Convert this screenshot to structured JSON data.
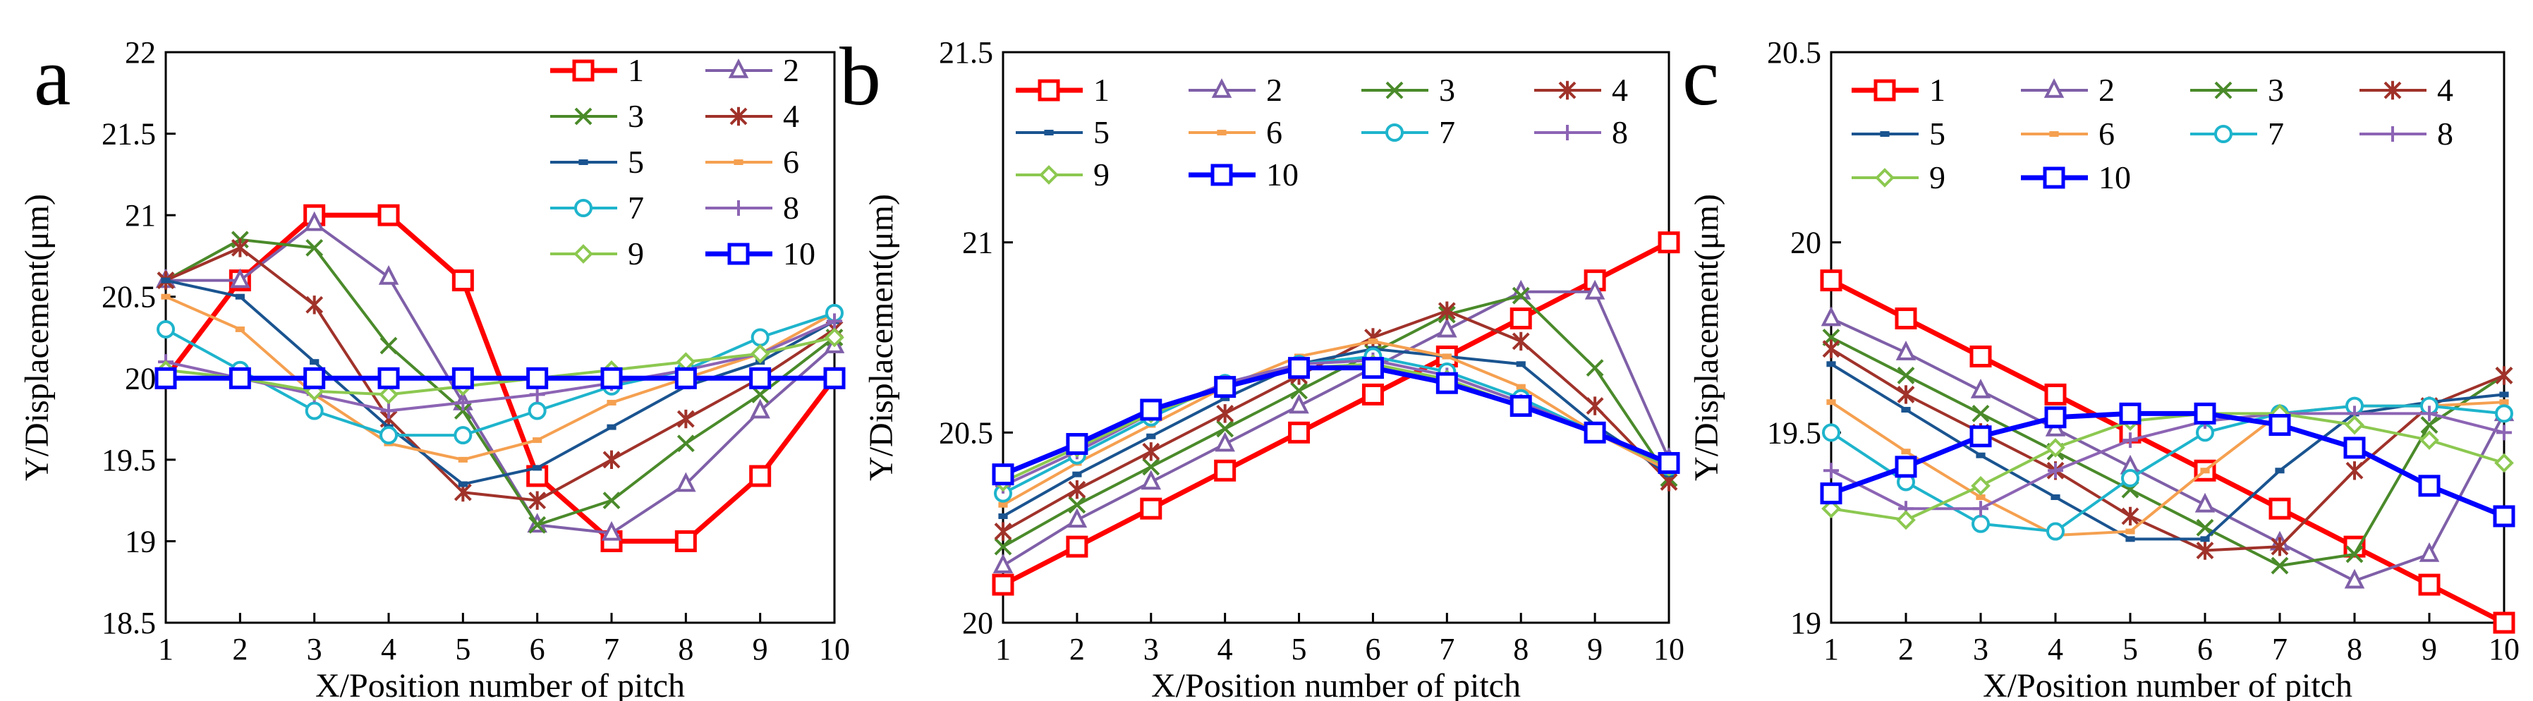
{
  "figure": {
    "series_names": [
      "1",
      "2",
      "3",
      "4",
      "5",
      "6",
      "7",
      "8",
      "9",
      "10"
    ],
    "series_colors": [
      "#ff0000",
      "#7f5fa8",
      "#4a8a2a",
      "#a0322a",
      "#1a5490",
      "#f5a050",
      "#1eb4cc",
      "#8c64b4",
      "#8cc850",
      "#0000ff"
    ],
    "series_markers": [
      "square",
      "triangle",
      "x",
      "star",
      "dash",
      "dash",
      "circle",
      "plus",
      "diamond",
      "square"
    ]
  },
  "chart_data": [
    {
      "type": "line",
      "panel_label": "a",
      "title": "",
      "xlabel": "X/Position number of pitch",
      "ylabel": "Y/Displacement(μm)",
      "x": [
        1,
        2,
        3,
        4,
        5,
        6,
        7,
        8,
        9,
        10
      ],
      "xlim": [
        1,
        10
      ],
      "ylim": [
        18.5,
        22
      ],
      "yticks": [
        "18.5",
        "19",
        "19.5",
        "20",
        "20.5",
        "21",
        "21.5",
        "22"
      ],
      "xticks": [
        "1",
        "2",
        "3",
        "4",
        "5",
        "6",
        "7",
        "8",
        "9",
        "10"
      ],
      "legend_columns": 2,
      "legend_location": "top-right",
      "series": [
        {
          "name": "1",
          "values": [
            20.0,
            20.6,
            21.0,
            21.0,
            20.6,
            19.4,
            19.0,
            19.0,
            19.4,
            20.0
          ]
        },
        {
          "name": "2",
          "values": [
            20.6,
            20.6,
            20.95,
            20.62,
            19.85,
            19.1,
            19.05,
            19.35,
            19.8,
            20.2
          ]
        },
        {
          "name": "3",
          "values": [
            20.6,
            20.85,
            20.8,
            20.2,
            19.8,
            19.1,
            19.25,
            19.6,
            19.9,
            20.25
          ]
        },
        {
          "name": "4",
          "values": [
            20.6,
            20.8,
            20.45,
            19.75,
            19.3,
            19.25,
            19.5,
            19.75,
            20.0,
            20.3
          ]
        },
        {
          "name": "5",
          "values": [
            20.6,
            20.5,
            20.1,
            19.7,
            19.35,
            19.45,
            19.7,
            19.95,
            20.1,
            20.35
          ]
        },
        {
          "name": "6",
          "values": [
            20.5,
            20.3,
            19.9,
            19.6,
            19.5,
            19.62,
            19.85,
            20.0,
            20.15,
            20.4
          ]
        },
        {
          "name": "7",
          "values": [
            20.3,
            20.05,
            19.8,
            19.65,
            19.65,
            19.8,
            19.95,
            20.05,
            20.25,
            20.4
          ]
        },
        {
          "name": "8",
          "values": [
            20.1,
            20.0,
            19.9,
            19.8,
            19.85,
            19.9,
            19.97,
            20.05,
            20.15,
            20.35
          ]
        },
        {
          "name": "9",
          "values": [
            20.05,
            20.0,
            19.92,
            19.9,
            19.95,
            20.0,
            20.05,
            20.1,
            20.15,
            20.25
          ]
        },
        {
          "name": "10",
          "values": [
            20.0,
            20.0,
            20.0,
            20.0,
            20.0,
            20.0,
            20.0,
            20.0,
            20.0,
            20.0
          ]
        }
      ]
    },
    {
      "type": "line",
      "panel_label": "b",
      "title": "",
      "xlabel": "X/Position number of pitch",
      "ylabel": "Y/Displacement(μm)",
      "x": [
        1,
        2,
        3,
        4,
        5,
        6,
        7,
        8,
        9,
        10
      ],
      "xlim": [
        1,
        10
      ],
      "ylim": [
        20,
        21.5
      ],
      "yticks": [
        "20",
        "20.5",
        "21",
        "21.5"
      ],
      "xticks": [
        "1",
        "2",
        "3",
        "4",
        "5",
        "6",
        "7",
        "8",
        "9",
        "10"
      ],
      "legend_columns": 4,
      "legend_location": "top-left",
      "series": [
        {
          "name": "1",
          "values": [
            20.1,
            20.2,
            20.3,
            20.4,
            20.5,
            20.6,
            20.7,
            20.8,
            20.9,
            21.0
          ]
        },
        {
          "name": "2",
          "values": [
            20.15,
            20.27,
            20.37,
            20.47,
            20.57,
            20.67,
            20.77,
            20.87,
            20.87,
            20.43
          ]
        },
        {
          "name": "3",
          "values": [
            20.2,
            20.31,
            20.41,
            20.51,
            20.61,
            20.71,
            20.81,
            20.86,
            20.67,
            20.38
          ]
        },
        {
          "name": "4",
          "values": [
            20.24,
            20.35,
            20.45,
            20.55,
            20.65,
            20.75,
            20.82,
            20.74,
            20.57,
            20.37
          ]
        },
        {
          "name": "5",
          "values": [
            20.28,
            20.39,
            20.49,
            20.59,
            20.68,
            20.72,
            20.7,
            20.68,
            20.52,
            20.39
          ]
        },
        {
          "name": "6",
          "values": [
            20.31,
            20.42,
            20.52,
            20.62,
            20.7,
            20.74,
            20.7,
            20.62,
            20.5,
            20.4
          ]
        },
        {
          "name": "7",
          "values": [
            20.34,
            20.44,
            20.54,
            20.63,
            20.68,
            20.7,
            20.66,
            20.59,
            20.5,
            20.41
          ]
        },
        {
          "name": "8",
          "values": [
            20.36,
            20.45,
            20.55,
            20.63,
            20.68,
            20.69,
            20.65,
            20.58,
            20.5,
            20.41
          ]
        },
        {
          "name": "9",
          "values": [
            20.37,
            20.46,
            20.55,
            20.62,
            20.67,
            20.68,
            20.64,
            20.57,
            20.5,
            20.41
          ]
        },
        {
          "name": "10",
          "values": [
            20.39,
            20.47,
            20.56,
            20.62,
            20.67,
            20.67,
            20.63,
            20.57,
            20.5,
            20.42
          ]
        }
      ]
    },
    {
      "type": "line",
      "panel_label": "c",
      "title": "",
      "xlabel": "X/Position number of pitch",
      "ylabel": "Y/Displacement(μm)",
      "x": [
        1,
        2,
        3,
        4,
        5,
        6,
        7,
        8,
        9,
        10
      ],
      "xlim": [
        1,
        10
      ],
      "ylim": [
        19,
        20.5
      ],
      "yticks": [
        "19",
        "19.5",
        "20",
        "20.5"
      ],
      "xticks": [
        "1",
        "2",
        "3",
        "4",
        "5",
        "6",
        "7",
        "8",
        "9",
        "10"
      ],
      "legend_columns": 4,
      "legend_location": "top-left",
      "series": [
        {
          "name": "1",
          "values": [
            19.9,
            19.8,
            19.7,
            19.6,
            19.5,
            19.4,
            19.3,
            19.2,
            19.1,
            19.0
          ]
        },
        {
          "name": "2",
          "values": [
            19.8,
            19.71,
            19.61,
            19.51,
            19.41,
            19.31,
            19.21,
            19.11,
            19.18,
            19.55
          ]
        },
        {
          "name": "3",
          "values": [
            19.75,
            19.65,
            19.55,
            19.45,
            19.35,
            19.25,
            19.15,
            19.18,
            19.52,
            19.65
          ]
        },
        {
          "name": "4",
          "values": [
            19.72,
            19.6,
            19.5,
            19.4,
            19.28,
            19.19,
            19.2,
            19.4,
            19.57,
            19.65
          ]
        },
        {
          "name": "5",
          "values": [
            19.68,
            19.56,
            19.44,
            19.33,
            19.22,
            19.22,
            19.4,
            19.55,
            19.58,
            19.6
          ]
        },
        {
          "name": "6",
          "values": [
            19.58,
            19.45,
            19.33,
            19.23,
            19.24,
            19.4,
            19.55,
            19.57,
            19.57,
            19.58
          ]
        },
        {
          "name": "7",
          "values": [
            19.5,
            19.37,
            19.26,
            19.24,
            19.38,
            19.5,
            19.55,
            19.57,
            19.57,
            19.55
          ]
        },
        {
          "name": "8",
          "values": [
            19.4,
            19.3,
            19.3,
            19.4,
            19.48,
            19.53,
            19.55,
            19.55,
            19.55,
            19.5
          ]
        },
        {
          "name": "9",
          "values": [
            19.3,
            19.27,
            19.36,
            19.46,
            19.53,
            19.55,
            19.55,
            19.52,
            19.48,
            19.42
          ]
        },
        {
          "name": "10",
          "values": [
            19.34,
            19.41,
            19.49,
            19.54,
            19.55,
            19.55,
            19.52,
            19.46,
            19.36,
            19.28
          ]
        }
      ]
    }
  ]
}
